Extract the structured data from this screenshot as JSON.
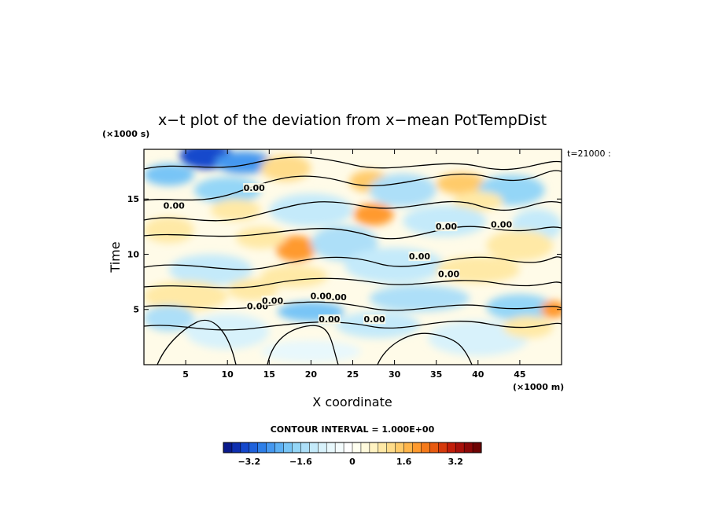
{
  "chart_data": {
    "type": "heatmap",
    "title": "x−t plot of the deviation from x−mean PotTempDist",
    "xlabel": "X coordinate",
    "ylabel": "Time",
    "x_unit": "(×1000 m)",
    "y_unit": "(×1000 s)",
    "xlim": [
      0,
      50
    ],
    "ylim": [
      0,
      19.5
    ],
    "x_ticks": [
      5,
      10,
      15,
      20,
      25,
      30,
      35,
      40,
      45
    ],
    "y_ticks": [
      5,
      10,
      15
    ],
    "time_annotation": "t=21000 :",
    "contour_interval_text": "CONTOUR INTERVAL = 1.000E+00",
    "contour_label": "0.00",
    "contour_label_positions": [
      [
        13.2,
        15.8
      ],
      [
        3.6,
        14.2
      ],
      [
        13.6,
        5.1
      ],
      [
        15.4,
        5.6
      ],
      [
        23.0,
        5.9
      ],
      [
        22.2,
        3.9
      ],
      [
        27.6,
        3.9
      ],
      [
        33.0,
        9.6
      ],
      [
        36.5,
        8.0
      ],
      [
        36.2,
        12.3
      ],
      [
        42.8,
        12.5
      ],
      [
        21.2,
        6.0
      ]
    ],
    "colorbar": {
      "min": -4.0,
      "max": 4.0,
      "step": 0.4,
      "tick_values": [
        -3.2,
        -1.6,
        0,
        1.6,
        3.2
      ],
      "tick_labels": [
        "−3.2",
        "−1.6",
        "0",
        "1.6",
        "3.2"
      ],
      "colors": [
        "#0a1a8c",
        "#0e2fb0",
        "#1548cc",
        "#1f62dc",
        "#2e7fe8",
        "#4598f0",
        "#5cb0f4",
        "#78c5f6",
        "#94d6f7",
        "#addff8",
        "#c4eafa",
        "#d8f2fb",
        "#e8f8fc",
        "#f4fcfd",
        "#ffffff",
        "#fffff0",
        "#fffadc",
        "#fff3c2",
        "#ffe9a6",
        "#ffdc8a",
        "#ffcb6a",
        "#ffb54a",
        "#ff9a2e",
        "#f57a1a",
        "#e85a10",
        "#d63a0c",
        "#c21e0a",
        "#a8100a",
        "#8c0808",
        "#6e0404"
      ]
    }
  }
}
